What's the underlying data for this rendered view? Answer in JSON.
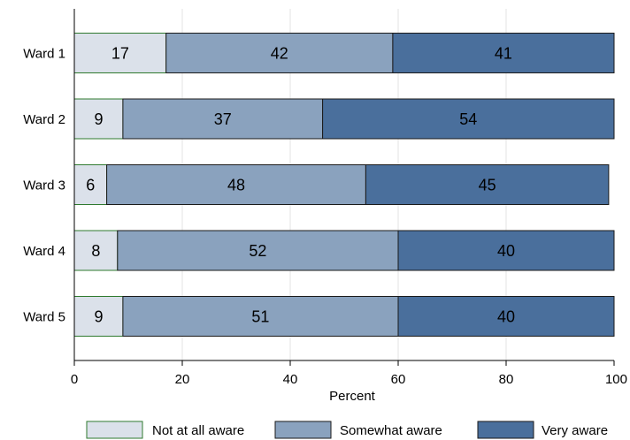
{
  "chart_data": {
    "type": "bar",
    "orientation": "horizontal",
    "stacked": true,
    "categories": [
      "Ward 1",
      "Ward 2",
      "Ward 3",
      "Ward 4",
      "Ward 5"
    ],
    "series": [
      {
        "name": "Not at all aware",
        "values": [
          17,
          9,
          6,
          8,
          9
        ],
        "labels": [
          "17",
          "9",
          "6",
          "8",
          "9"
        ],
        "color": "#dbe1ea"
      },
      {
        "name": "Somewhat aware",
        "values": [
          42,
          37,
          48,
          52,
          51
        ],
        "labels": [
          "42",
          "37",
          "48",
          "52",
          "51"
        ],
        "color": "#8aa2be"
      },
      {
        "name": "Very aware",
        "values": [
          41,
          54,
          45,
          40,
          40
        ],
        "labels": [
          "41",
          "54",
          "45",
          "40",
          "40"
        ],
        "color": "#4a6f9c"
      }
    ],
    "xlabel": "Percent",
    "xlim": [
      0,
      100
    ],
    "xticks": [
      "0",
      "20",
      "40",
      "60",
      "80",
      "100"
    ],
    "grid": true,
    "legend": "bottom"
  }
}
